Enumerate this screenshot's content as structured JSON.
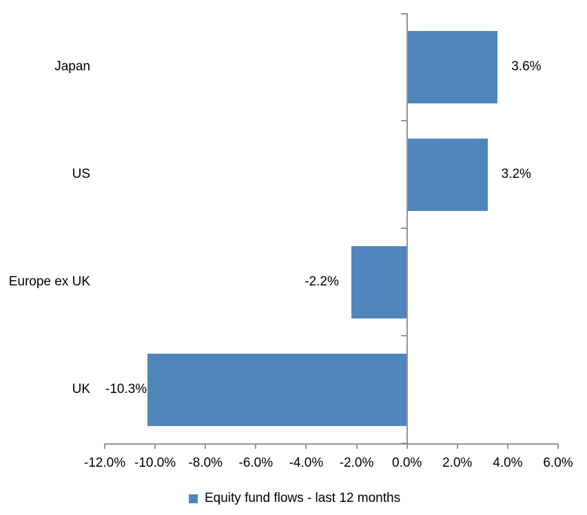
{
  "chart_data": {
    "type": "bar",
    "orientation": "horizontal",
    "title": "",
    "xlabel": "",
    "ylabel": "",
    "categories": [
      "Japan",
      "US",
      "Europe ex UK",
      "UK"
    ],
    "series": [
      {
        "name": "Equity fund flows - last 12 months",
        "values": [
          3.6,
          3.2,
          -2.2,
          -10.3
        ],
        "data_labels": [
          "3.6%",
          "3.2%",
          "-2.2%",
          "-10.3%"
        ]
      }
    ],
    "xlim": [
      -12,
      6
    ],
    "x_tick_values": [
      -12,
      -10,
      -8,
      -6,
      -4,
      -2,
      0,
      2,
      4,
      6
    ],
    "x_tick_labels": [
      "-12.0%",
      "-10.0%",
      "-8.0%",
      "-6.0%",
      "-4.0%",
      "-2.0%",
      "0.0%",
      "2.0%",
      "4.0%",
      "6.0%"
    ],
    "grid": false,
    "legend_position": "bottom",
    "colors": {
      "bar": "#4E86BC",
      "axis": "#949494",
      "text": "#000000",
      "background": "#FFFFFF"
    }
  },
  "legend": {
    "label": "Equity fund flows - last 12 months",
    "swatch_color": "#4E86BC"
  }
}
